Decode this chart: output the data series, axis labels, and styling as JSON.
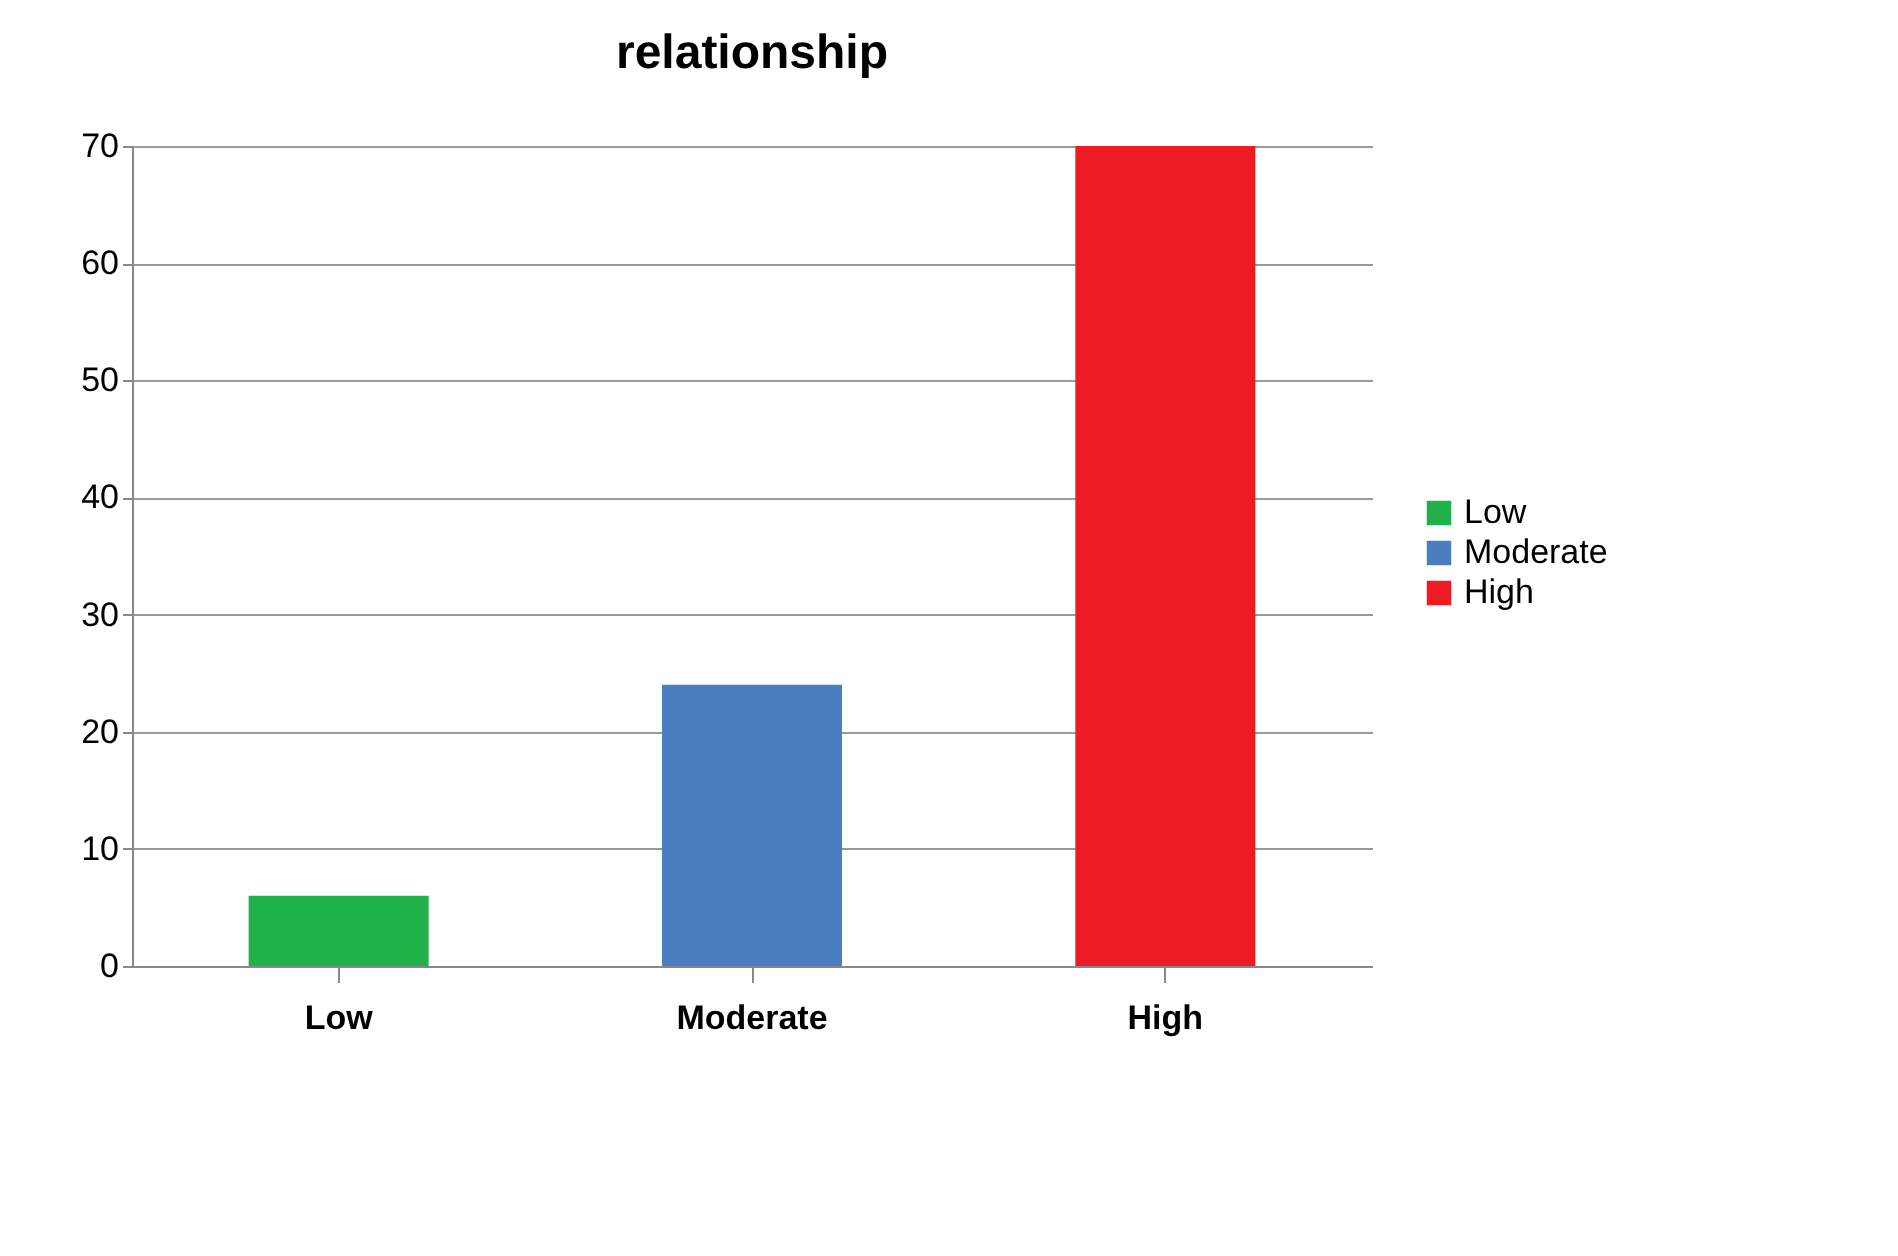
{
  "chart_data": {
    "type": "bar",
    "title": "relationship",
    "categories": [
      "Low",
      "Moderate",
      "High"
    ],
    "series": [
      {
        "name": "Low",
        "color": "#1fb24a",
        "values": [
          6,
          null,
          null
        ]
      },
      {
        "name": "Moderate",
        "color": "#4a7ebf",
        "values": [
          null,
          24,
          null
        ]
      },
      {
        "name": "High",
        "color": "#ed1c24",
        "values": [
          null,
          null,
          70
        ]
      }
    ],
    "stacked": true,
    "ylim": [
      0,
      70
    ],
    "yticks": [
      0,
      10,
      20,
      30,
      40,
      50,
      60,
      70
    ],
    "grid": "y",
    "legend": "right"
  }
}
